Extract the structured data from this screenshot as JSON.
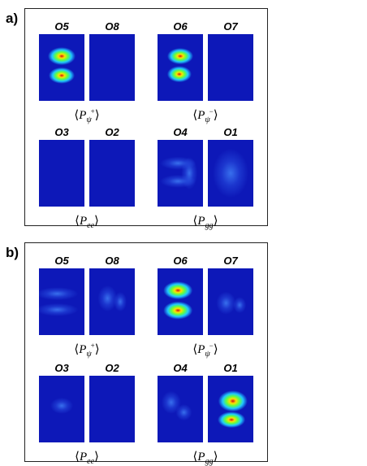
{
  "panels": [
    {
      "label": "a)",
      "groups": [
        {
          "images": [
            "O5",
            "O8"
          ],
          "caption": {
            "left": "⟨",
            "base": "P",
            "sub": "ψ",
            "sup": "+",
            "right": "⟩"
          }
        },
        {
          "images": [
            "O6",
            "O7"
          ],
          "caption": {
            "left": "⟨",
            "base": "P",
            "sub": "ψ",
            "sup": "−",
            "right": "⟩"
          }
        },
        {
          "images": [
            "O3",
            "O2"
          ],
          "caption": {
            "left": "⟨",
            "base": "P",
            "sub": "ee",
            "right": "⟩"
          }
        },
        {
          "images": [
            "O4",
            "O1"
          ],
          "caption": {
            "left": "⟨",
            "base": "P",
            "sub": "gg",
            "right": "⟩"
          }
        }
      ]
    },
    {
      "label": "b)",
      "groups": [
        {
          "images": [
            "O5",
            "O8"
          ],
          "caption": {
            "left": "⟨",
            "base": "P",
            "sub": "ψ",
            "sup": "+",
            "right": "⟩"
          }
        },
        {
          "images": [
            "O6",
            "O7"
          ],
          "caption": {
            "left": "⟨",
            "base": "P",
            "sub": "ψ",
            "sup": "−",
            "right": "⟩"
          }
        },
        {
          "images": [
            "O3",
            "O2"
          ],
          "caption": {
            "left": "⟨",
            "base": "P",
            "sub": "ee",
            "right": "⟩"
          }
        },
        {
          "images": [
            "O4",
            "O1"
          ],
          "caption": {
            "left": "⟨",
            "base": "P",
            "sub": "gg",
            "right": "⟩"
          }
        }
      ]
    }
  ]
}
